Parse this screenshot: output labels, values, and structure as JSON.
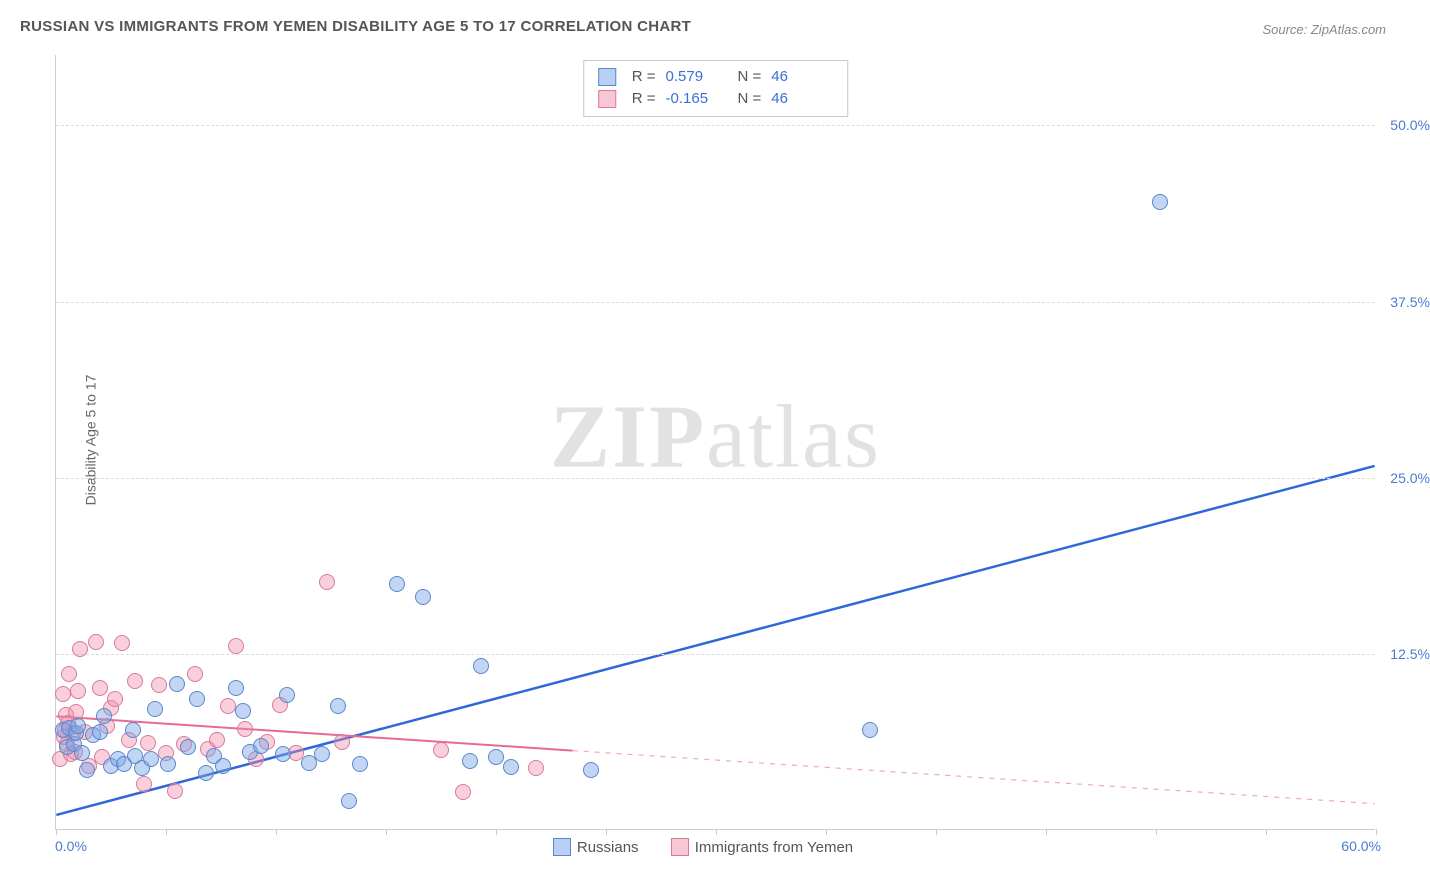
{
  "title": "RUSSIAN VS IMMIGRANTS FROM YEMEN DISABILITY AGE 5 TO 17 CORRELATION CHART",
  "source": "Source: ZipAtlas.com",
  "y_axis_title": "Disability Age 5 to 17",
  "watermark": {
    "bold": "ZIP",
    "rest": "atlas"
  },
  "chart": {
    "type": "scatter",
    "background_color": "#ffffff",
    "grid_color": "#dddddd",
    "axis_color": "#cccccc",
    "x": {
      "min": 0.0,
      "max": 60.0,
      "min_label": "0.0%",
      "max_label": "60.0%",
      "ticks": [
        0,
        5,
        10,
        15,
        20,
        25,
        30,
        35,
        40,
        45,
        50,
        55,
        60
      ]
    },
    "y": {
      "min": 0.0,
      "max": 55.0,
      "ticks": [
        12.5,
        25.0,
        37.5,
        50.0
      ],
      "tick_labels": [
        "12.5%",
        "25.0%",
        "37.5%",
        "50.0%"
      ],
      "label_color": "#4a7bd0"
    },
    "series": [
      {
        "name": "Russians",
        "color_fill": "rgba(120,165,230,0.45)",
        "color_stroke": "#5a88cc",
        "marker_radius": 8,
        "stats": {
          "R": "0.579",
          "N": "46"
        },
        "trend": {
          "x1": 0,
          "y1": 1.0,
          "x2": 60,
          "y2": 25.8,
          "solid_until_x": 60,
          "stroke": "#2e68d8",
          "width": 2.5,
          "dash_stroke": "#2e68d8"
        },
        "points": [
          [
            0.3,
            7.0
          ],
          [
            0.5,
            5.8
          ],
          [
            0.6,
            7.2
          ],
          [
            0.8,
            6.0
          ],
          [
            0.9,
            6.8
          ],
          [
            1.0,
            7.3
          ],
          [
            1.2,
            5.4
          ],
          [
            1.4,
            4.2
          ],
          [
            1.7,
            6.7
          ],
          [
            2.0,
            6.9
          ],
          [
            2.2,
            8.0
          ],
          [
            2.5,
            4.5
          ],
          [
            2.8,
            5.0
          ],
          [
            3.1,
            4.6
          ],
          [
            3.5,
            7.0
          ],
          [
            3.6,
            5.2
          ],
          [
            3.9,
            4.3
          ],
          [
            4.3,
            5.0
          ],
          [
            4.5,
            8.5
          ],
          [
            5.1,
            4.6
          ],
          [
            5.5,
            10.3
          ],
          [
            6.0,
            5.8
          ],
          [
            6.4,
            9.2
          ],
          [
            6.8,
            4.0
          ],
          [
            7.2,
            5.2
          ],
          [
            7.6,
            4.5
          ],
          [
            8.2,
            10.0
          ],
          [
            8.5,
            8.4
          ],
          [
            8.8,
            5.5
          ],
          [
            9.3,
            5.9
          ],
          [
            10.3,
            5.3
          ],
          [
            10.5,
            9.5
          ],
          [
            11.5,
            4.7
          ],
          [
            12.1,
            5.3
          ],
          [
            12.8,
            8.7
          ],
          [
            13.3,
            2.0
          ],
          [
            13.8,
            4.6
          ],
          [
            15.5,
            17.4
          ],
          [
            16.7,
            16.5
          ],
          [
            18.8,
            4.8
          ],
          [
            19.3,
            11.6
          ],
          [
            20.0,
            5.1
          ],
          [
            20.7,
            4.4
          ],
          [
            24.3,
            4.2
          ],
          [
            37.0,
            7.0
          ],
          [
            50.2,
            44.5
          ]
        ]
      },
      {
        "name": "Immigrants from Yemen",
        "color_fill": "rgba(240,140,170,0.42)",
        "color_stroke": "#d87b9a",
        "marker_radius": 8,
        "stats": {
          "R": "-0.165",
          "N": "46"
        },
        "trend": {
          "x1": 0,
          "y1": 8.0,
          "x2": 60,
          "y2": 1.8,
          "solid_until_x": 23.5,
          "stroke": "#e86a94",
          "width": 2.0,
          "dash_stroke": "#f0a8bc"
        },
        "points": [
          [
            0.2,
            5.0
          ],
          [
            0.3,
            9.6
          ],
          [
            0.35,
            6.5
          ],
          [
            0.4,
            7.0
          ],
          [
            0.45,
            8.1
          ],
          [
            0.5,
            6.0
          ],
          [
            0.55,
            7.5
          ],
          [
            0.6,
            11.0
          ],
          [
            0.7,
            5.3
          ],
          [
            0.75,
            6.8
          ],
          [
            0.85,
            5.5
          ],
          [
            0.9,
            8.3
          ],
          [
            1.0,
            9.8
          ],
          [
            1.1,
            12.8
          ],
          [
            1.3,
            6.9
          ],
          [
            1.5,
            4.5
          ],
          [
            1.8,
            13.3
          ],
          [
            2.0,
            10.0
          ],
          [
            2.1,
            5.1
          ],
          [
            2.3,
            7.3
          ],
          [
            2.5,
            8.6
          ],
          [
            2.7,
            9.2
          ],
          [
            3.0,
            13.2
          ],
          [
            3.3,
            6.3
          ],
          [
            3.6,
            10.5
          ],
          [
            4.0,
            3.2
          ],
          [
            4.2,
            6.1
          ],
          [
            4.7,
            10.2
          ],
          [
            5.0,
            5.4
          ],
          [
            5.4,
            2.7
          ],
          [
            5.8,
            6.0
          ],
          [
            6.3,
            11.0
          ],
          [
            6.9,
            5.7
          ],
          [
            7.3,
            6.3
          ],
          [
            7.8,
            8.7
          ],
          [
            8.2,
            13.0
          ],
          [
            8.6,
            7.1
          ],
          [
            9.1,
            5.0
          ],
          [
            9.6,
            6.2
          ],
          [
            10.2,
            8.8
          ],
          [
            10.9,
            5.4
          ],
          [
            12.3,
            17.5
          ],
          [
            13.0,
            6.2
          ],
          [
            17.5,
            5.6
          ],
          [
            18.5,
            2.6
          ],
          [
            21.8,
            4.3
          ]
        ]
      }
    ]
  },
  "legend": {
    "items": [
      {
        "label": "Russians",
        "swatch": "blue"
      },
      {
        "label": "Immigrants from Yemen",
        "swatch": "pink"
      }
    ]
  }
}
